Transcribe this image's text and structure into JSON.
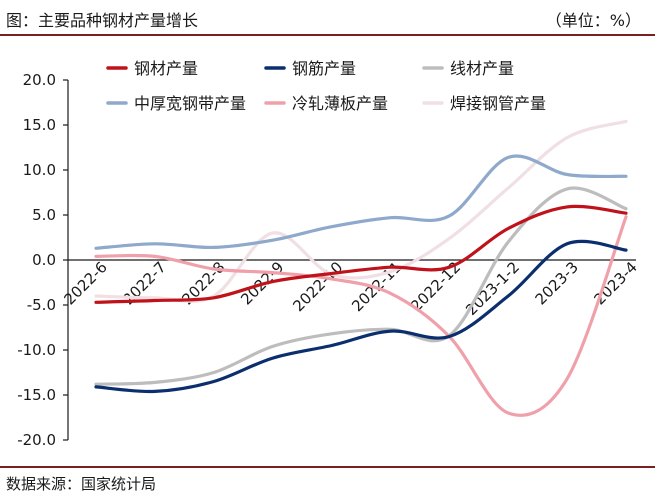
{
  "header": {
    "title": "图：主要品种钢材产量增长",
    "unit": "（单位：%）"
  },
  "footer": {
    "source": "数据来源：国家统计局"
  },
  "chart_data": {
    "type": "line",
    "title": "图：主要品种钢材产量增长",
    "xlabel": "",
    "ylabel": "",
    "categories": [
      "2022-6",
      "2022-7",
      "2022-8",
      "2022-9",
      "2022-10",
      "2022-11",
      "2022-12",
      "2023-1-2",
      "2023-3",
      "2023-4"
    ],
    "ylim": [
      -20,
      20
    ],
    "yticks": [
      20,
      15,
      10,
      5,
      0,
      -5,
      -10,
      -15,
      -20
    ],
    "ytick_labels": [
      "20.0",
      "15.0",
      "10.0",
      "5.0",
      "0.0",
      "-5.0",
      "-10.0",
      "-15.0",
      "-20.0"
    ],
    "grid": false,
    "legend": "top",
    "series": [
      {
        "name": "钢材产量",
        "color": "#c0121a",
        "values": [
          -4.7,
          -4.5,
          -4.2,
          -2.4,
          -1.5,
          -0.8,
          -0.8,
          3.5,
          5.9,
          5.2
        ]
      },
      {
        "name": "钢筋产量",
        "color": "#0b2f6e",
        "values": [
          -14.1,
          -14.6,
          -13.5,
          -10.9,
          -9.5,
          -7.9,
          -8.5,
          -4.0,
          1.8,
          1.1
        ]
      },
      {
        "name": "线材产量",
        "color": "#bdbdbd",
        "values": [
          -13.8,
          -13.6,
          -12.5,
          -9.6,
          -8.2,
          -7.7,
          -8.4,
          2.0,
          7.9,
          5.7
        ]
      },
      {
        "name": "中厚宽钢带产量",
        "color": "#8ea9cc",
        "values": [
          1.3,
          1.8,
          1.4,
          2.2,
          3.7,
          4.7,
          4.9,
          11.4,
          9.5,
          9.3
        ]
      },
      {
        "name": "冷轧薄板产量",
        "color": "#f0a0aa",
        "values": [
          0.4,
          0.4,
          -1.0,
          -1.4,
          -2.1,
          -3.7,
          -8.5,
          -17.0,
          -13.2,
          4.8
        ]
      },
      {
        "name": "焊接钢管产量",
        "color": "#f0dfe3",
        "values": [
          -4.0,
          -4.2,
          -4.0,
          3.0,
          -1.6,
          -1.3,
          2.4,
          8.0,
          13.6,
          15.4
        ]
      }
    ]
  }
}
